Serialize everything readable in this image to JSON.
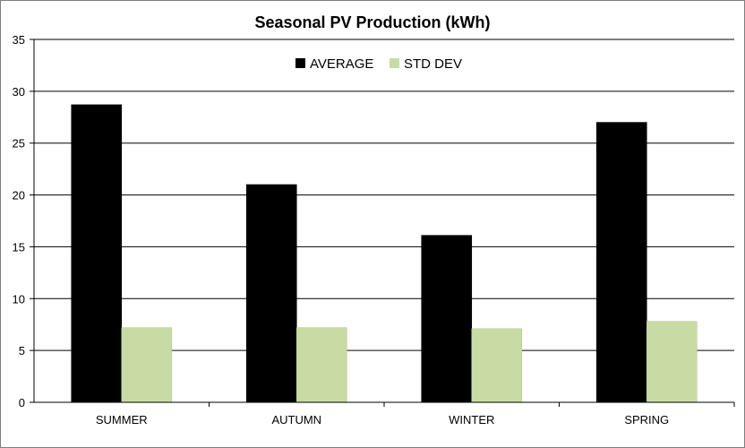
{
  "chart_data": {
    "type": "bar",
    "title": "Seasonal PV Production  (kWh)",
    "xlabel": "",
    "ylabel": "",
    "categories": [
      "SUMMER",
      "AUTUMN",
      "WINTER",
      "SPRING"
    ],
    "series": [
      {
        "name": "AVERAGE",
        "color": "#000000",
        "values": [
          28.7,
          21.0,
          16.1,
          27.0
        ]
      },
      {
        "name": "STD DEV",
        "color": "#c9dba4",
        "values": [
          7.2,
          7.2,
          7.1,
          7.8
        ]
      }
    ],
    "ylim": [
      0,
      35
    ],
    "yticks": [
      0,
      5,
      10,
      15,
      20,
      25,
      30,
      35
    ],
    "grid": true,
    "legend_position": "top-center"
  }
}
